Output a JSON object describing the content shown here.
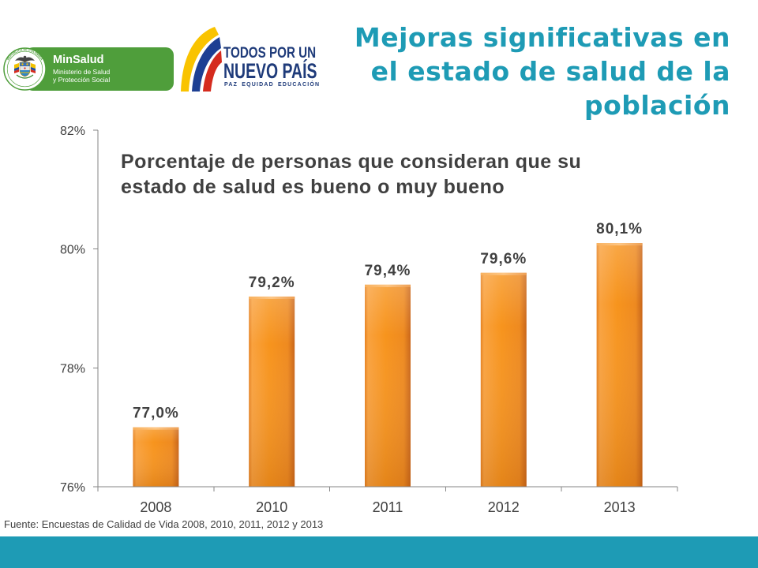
{
  "header": {
    "title_lines": [
      "Mejoras significativas en",
      "el estado de salud de la",
      "población"
    ]
  },
  "logos": {
    "minsalud": {
      "name": "MinSalud",
      "line1": "Ministerio de Salud",
      "line2": "y Protección Social",
      "seal_text": "REPÚBLICA DE COLOMBIA"
    },
    "nuevo_pais": {
      "line1": "TODOS POR UN",
      "line2": "NUEVO PAÍS",
      "tagline": "PAZ EQUIDAD EDUCACIÓN"
    }
  },
  "chart_data": {
    "type": "bar",
    "title_lines": [
      "Porcentaje de personas que consideran que su",
      "estado de salud es bueno o muy bueno"
    ],
    "categories": [
      "2008",
      "2010",
      "2011",
      "2012",
      "2013"
    ],
    "values": [
      77.0,
      79.2,
      79.4,
      79.6,
      80.1
    ],
    "data_labels": [
      "77,0%",
      "79,2%",
      "79,4%",
      "79,6%",
      "80,1%"
    ],
    "ylim": [
      76,
      82
    ],
    "yticks": [
      82,
      80,
      78,
      76
    ],
    "ytick_labels": [
      "82%",
      "80%",
      "78%",
      "76%"
    ],
    "xlabel": "",
    "ylabel": "",
    "grid": false
  },
  "footer": {
    "source": "Fuente: Encuestas de Calidad de Vida 2008, 2010, 2011, 2012 y 2013"
  },
  "colors": {
    "accent": "#1e9bb5",
    "bar": "#f7941d",
    "minsalud_green": "#4f9e3b",
    "nuevo_pais_navy": "#1f3b7a",
    "text": "#404040",
    "axis": "#868686"
  }
}
